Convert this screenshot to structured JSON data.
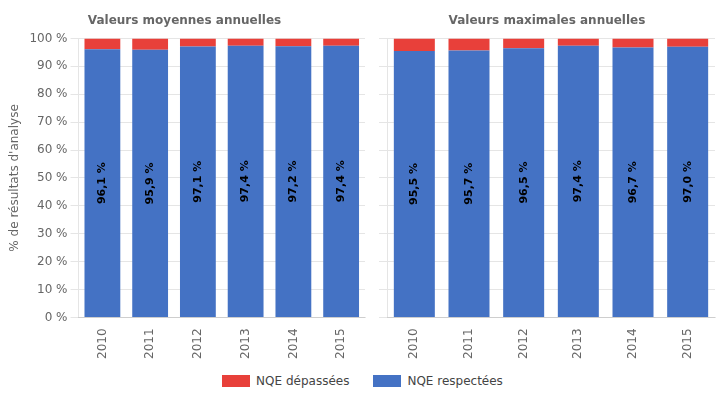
{
  "chart_data": [
    {
      "type": "bar",
      "stacked": true,
      "title": "Valeurs moyennes annuelles",
      "y_label": "% de résultats d'analyse",
      "categories": [
        "2010",
        "2011",
        "2012",
        "2013",
        "2014",
        "2015"
      ],
      "series": [
        {
          "name": "NQE respectées",
          "color": "#4472C4",
          "values": [
            96.1,
            95.9,
            97.1,
            97.4,
            97.2,
            97.4
          ],
          "data_labels": true,
          "value_labels": [
            "96,1 %",
            "95,9 %",
            "97,1 %",
            "97,4 %",
            "97,2 %",
            "97,4 %"
          ]
        },
        {
          "name": "NQE dépassées",
          "color": "#E8403A",
          "values": [
            3.9,
            4.1,
            2.9,
            2.6,
            2.8,
            2.6
          ]
        }
      ],
      "ylim": [
        0,
        100
      ],
      "yticks": [
        {
          "value": 0,
          "label": "0 %"
        },
        {
          "value": 10,
          "label": "10 %"
        },
        {
          "value": 20,
          "label": "20 %"
        },
        {
          "value": 30,
          "label": "30 %"
        },
        {
          "value": 40,
          "label": "40 %"
        },
        {
          "value": 50,
          "label": "50 %"
        },
        {
          "value": 60,
          "label": "60 %"
        },
        {
          "value": 70,
          "label": "70 %"
        },
        {
          "value": 80,
          "label": "80 %"
        },
        {
          "value": 90,
          "label": "90 %"
        },
        {
          "value": 100,
          "label": "100 %"
        }
      ],
      "grid": true,
      "legend": "bottom"
    },
    {
      "type": "bar",
      "stacked": true,
      "title": "Valeurs maximales annuelles",
      "categories": [
        "2010",
        "2011",
        "2012",
        "2013",
        "2014",
        "2015"
      ],
      "series": [
        {
          "name": "NQE respectées",
          "color": "#4472C4",
          "values": [
            95.5,
            95.7,
            96.5,
            97.4,
            96.7,
            97.0
          ],
          "data_labels": true,
          "value_labels": [
            "95,5 %",
            "95,7 %",
            "96,5 %",
            "97,4 %",
            "96,7 %",
            "97,0 %"
          ]
        },
        {
          "name": "NQE dépassées",
          "color": "#E8403A",
          "values": [
            4.5,
            4.3,
            3.5,
            2.6,
            3.3,
            3.0
          ]
        }
      ],
      "ylim": [
        0,
        100
      ],
      "yticks": [
        0,
        10,
        20,
        30,
        40,
        50,
        60,
        70,
        80,
        90,
        100
      ],
      "grid": true,
      "tick_labels": "x"
    }
  ]
}
